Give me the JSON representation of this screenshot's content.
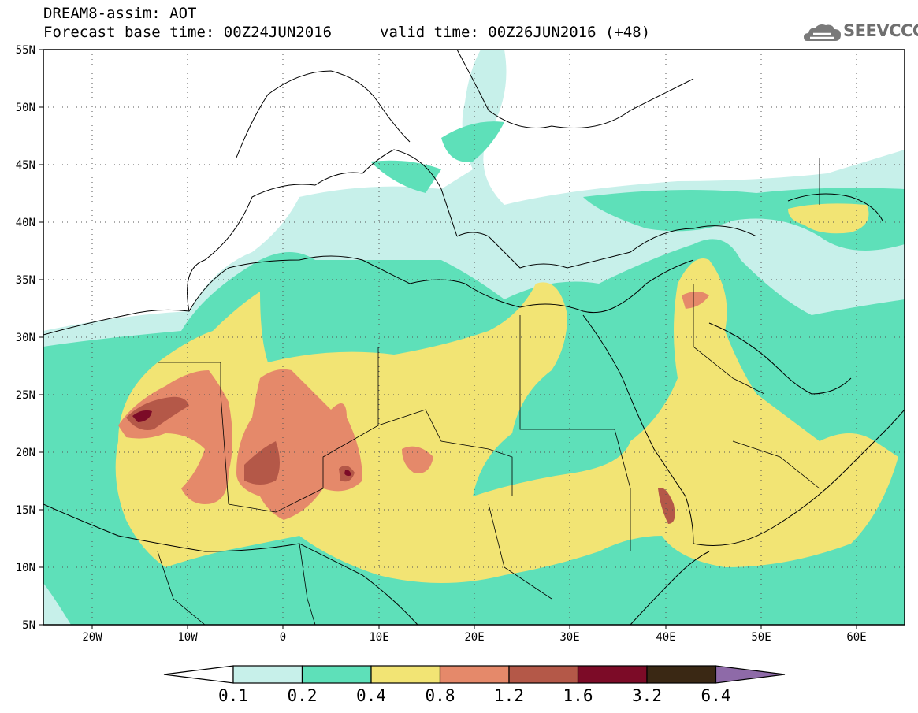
{
  "header": {
    "model_line": "DREAM8-assim: AOT",
    "base_line": "Forecast base time: 00Z24JUN2016",
    "valid_line": "valid time: 00Z26JUN2016 (+48)",
    "logo_text": "SEEVCCC"
  },
  "axes": {
    "lon_labels": [
      "20W",
      "10W",
      "0",
      "10E",
      "20E",
      "30E",
      "40E",
      "50E",
      "60E"
    ],
    "lat_labels": [
      "55N",
      "50N",
      "45N",
      "40N",
      "35N",
      "30N",
      "25N",
      "20N",
      "15N",
      "10N",
      "5N"
    ]
  },
  "legend": {
    "labels": [
      "0.1",
      "0.2",
      "0.4",
      "0.8",
      "1.2",
      "1.6",
      "3.2",
      "6.4"
    ],
    "colors": [
      "#ffffff",
      "#c7f0ea",
      "#5ee0b9",
      "#f2e474",
      "#e5896a",
      "#b45848",
      "#7c0b27",
      "#3a2814",
      "#8e6aa8"
    ]
  },
  "colors": {
    "c01": "#c7f0ea",
    "c02": "#5ee0b9",
    "c04": "#f2e474",
    "c08": "#e5896a",
    "c12": "#b45848",
    "c16": "#7c0b27"
  }
}
